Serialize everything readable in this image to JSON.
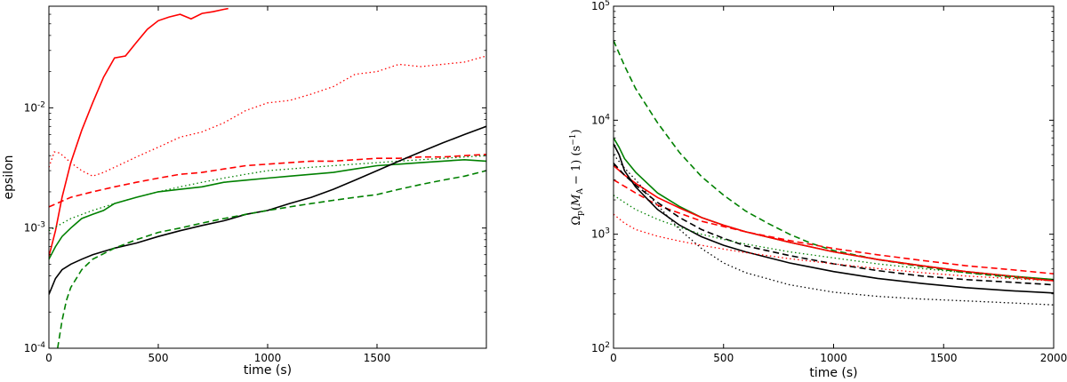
{
  "chart_data": [
    {
      "type": "line",
      "xlabel": "time (s)",
      "ylabel": "epsilon",
      "xlim": [
        0,
        2000
      ],
      "ylim": [
        0.0001,
        0.07
      ],
      "yscale": "log",
      "grid": false,
      "xticks": [
        0,
        500,
        1000,
        1500
      ],
      "xtick_labels": [
        "0",
        "500",
        "1000",
        "1500"
      ],
      "yticks": [
        0.0001,
        0.001,
        0.01
      ],
      "ytick_labels": [
        {
          "base": "10",
          "exp": "-4"
        },
        {
          "base": "10",
          "exp": "-3"
        },
        {
          "base": "10",
          "exp": "-2"
        }
      ],
      "series": [
        {
          "color": "#ff0000",
          "style": "solid",
          "x": [
            0,
            30,
            60,
            100,
            150,
            200,
            250,
            300,
            350,
            400,
            450,
            500,
            550,
            600,
            650,
            700,
            750,
            800,
            820
          ],
          "y": [
            0.00058,
            0.00095,
            0.0018,
            0.0035,
            0.0065,
            0.011,
            0.018,
            0.026,
            0.027,
            0.035,
            0.045,
            0.053,
            0.057,
            0.06,
            0.055,
            0.061,
            0.063,
            0.066,
            0.067
          ]
        },
        {
          "color": "#ff0000",
          "style": "dotted",
          "x": [
            0,
            25,
            50,
            100,
            150,
            200,
            250,
            300,
            400,
            500,
            600,
            700,
            800,
            900,
            1000,
            1100,
            1200,
            1300,
            1400,
            1500,
            1600,
            1700,
            1800,
            1900,
            2000
          ],
          "y": [
            0.0032,
            0.0043,
            0.0042,
            0.0035,
            0.003,
            0.0027,
            0.0029,
            0.0032,
            0.0039,
            0.0047,
            0.0057,
            0.0063,
            0.0075,
            0.0095,
            0.011,
            0.0115,
            0.013,
            0.015,
            0.019,
            0.02,
            0.023,
            0.022,
            0.023,
            0.024,
            0.027
          ]
        },
        {
          "color": "#ff0000",
          "style": "dashed",
          "x": [
            0,
            100,
            200,
            300,
            400,
            500,
            600,
            700,
            800,
            900,
            1000,
            1100,
            1200,
            1300,
            1400,
            1500,
            1600,
            1700,
            1800,
            1900,
            2000
          ],
          "y": [
            0.0015,
            0.0018,
            0.002,
            0.0022,
            0.0024,
            0.0026,
            0.0028,
            0.0029,
            0.0031,
            0.0033,
            0.0034,
            0.0035,
            0.0036,
            0.0036,
            0.0037,
            0.0038,
            0.0038,
            0.0039,
            0.0039,
            0.004,
            0.0041
          ]
        },
        {
          "color": "#008000",
          "style": "dotted",
          "x": [
            0,
            100,
            200,
            300,
            400,
            500,
            600,
            700,
            800,
            900,
            1000,
            1100,
            1200,
            1300,
            1400,
            1500,
            1600,
            1700,
            1800,
            1900,
            2000
          ],
          "y": [
            0.00095,
            0.0012,
            0.0014,
            0.0016,
            0.0018,
            0.002,
            0.0022,
            0.0024,
            0.0026,
            0.0028,
            0.003,
            0.0031,
            0.0032,
            0.0033,
            0.0034,
            0.0035,
            0.0036,
            0.0037,
            0.0038,
            0.0039,
            0.004
          ]
        },
        {
          "color": "#008000",
          "style": "solid",
          "x": [
            0,
            30,
            60,
            100,
            150,
            200,
            250,
            300,
            400,
            500,
            600,
            700,
            800,
            900,
            1000,
            1100,
            1200,
            1300,
            1400,
            1500,
            1600,
            1700,
            1800,
            1900,
            2000
          ],
          "y": [
            0.00055,
            0.0007,
            0.00085,
            0.001,
            0.0012,
            0.0013,
            0.0014,
            0.0016,
            0.0018,
            0.002,
            0.0021,
            0.0022,
            0.0024,
            0.0025,
            0.0026,
            0.0027,
            0.0028,
            0.0029,
            0.0031,
            0.0033,
            0.0034,
            0.0035,
            0.0036,
            0.0037,
            0.0036
          ]
        },
        {
          "color": "#000000",
          "style": "solid",
          "x": [
            0,
            30,
            60,
            100,
            150,
            200,
            300,
            400,
            500,
            600,
            700,
            800,
            900,
            1000,
            1100,
            1200,
            1300,
            1400,
            1500,
            1600,
            1700,
            1800,
            1900,
            2000
          ],
          "y": [
            0.00028,
            0.00038,
            0.00045,
            0.0005,
            0.00055,
            0.0006,
            0.00068,
            0.00075,
            0.00085,
            0.00095,
            0.00105,
            0.00115,
            0.0013,
            0.0014,
            0.0016,
            0.0018,
            0.0021,
            0.0025,
            0.003,
            0.0036,
            0.0043,
            0.0051,
            0.006,
            0.007
          ]
        },
        {
          "color": "#008000",
          "style": "dashed",
          "x": [
            40,
            60,
            80,
            100,
            150,
            200,
            300,
            400,
            500,
            600,
            700,
            800,
            900,
            1000,
            1100,
            1200,
            1300,
            1400,
            1500,
            1600,
            1700,
            1800,
            1900,
            2000
          ],
          "y": [
            0.0001,
            0.00017,
            0.00025,
            0.00032,
            0.00045,
            0.00055,
            0.00068,
            0.0008,
            0.00092,
            0.001,
            0.0011,
            0.0012,
            0.0013,
            0.0014,
            0.0015,
            0.0016,
            0.0017,
            0.0018,
            0.0019,
            0.0021,
            0.0023,
            0.0025,
            0.0027,
            0.003
          ]
        }
      ]
    },
    {
      "type": "line",
      "xlabel": "time (s)",
      "ylabel": "Ω_p(M_A−1) (s⁻¹)",
      "ylabel_parts": {
        "omega": "Ω",
        "sub_p": "p",
        "paren_open": "(",
        "m": "M",
        "sub_a": "A",
        "minus_one": " − 1)",
        "units": " (s",
        "units_exp": "−1",
        "units_close": ")"
      },
      "xlim": [
        0,
        2000
      ],
      "ylim": [
        100,
        100000
      ],
      "yscale": "log",
      "grid": false,
      "xticks": [
        0,
        500,
        1000,
        1500,
        2000
      ],
      "xtick_labels": [
        "0",
        "500",
        "1000",
        "1500",
        "2000"
      ],
      "yticks": [
        100,
        1000,
        10000,
        100000
      ],
      "ytick_labels": [
        {
          "base": "10",
          "exp": "2"
        },
        {
          "base": "10",
          "exp": "3"
        },
        {
          "base": "10",
          "exp": "4"
        },
        {
          "base": "10",
          "exp": "5"
        }
      ],
      "series": [
        {
          "color": "#008000",
          "style": "dashed",
          "x": [
            0,
            50,
            100,
            200,
            300,
            400,
            500,
            600,
            700,
            800,
            900,
            1000,
            1200,
            1400,
            1600,
            1800,
            2000
          ],
          "y": [
            50000,
            30000,
            19000,
            9500,
            5200,
            3200,
            2200,
            1600,
            1250,
            1000,
            830,
            720,
            600,
            520,
            460,
            420,
            390
          ]
        },
        {
          "color": "#008000",
          "style": "solid",
          "x": [
            0,
            25,
            50,
            100,
            200,
            300,
            400,
            500,
            600,
            800,
            1000,
            1200,
            1400,
            1600,
            1800,
            2000
          ],
          "y": [
            7000,
            5800,
            4600,
            3500,
            2300,
            1750,
            1400,
            1200,
            1050,
            850,
            700,
            600,
            530,
            470,
            430,
            400
          ]
        },
        {
          "color": "#ff0000",
          "style": "solid",
          "x": [
            0,
            50,
            100,
            200,
            300,
            400,
            500,
            600,
            800,
            1000,
            1200,
            1400,
            1600,
            1800,
            2000
          ],
          "y": [
            4000,
            3300,
            2800,
            2100,
            1700,
            1400,
            1200,
            1050,
            850,
            700,
            600,
            530,
            470,
            430,
            390
          ]
        },
        {
          "color": "#ff0000",
          "style": "dashed",
          "x": [
            0,
            100,
            200,
            400,
            600,
            800,
            1000,
            1200,
            1400,
            1600,
            1800,
            2000
          ],
          "y": [
            3000,
            2300,
            1800,
            1300,
            1050,
            880,
            750,
            660,
            590,
            530,
            490,
            450
          ]
        },
        {
          "color": "#000000",
          "style": "solid",
          "x": [
            0,
            25,
            50,
            100,
            200,
            300,
            400,
            500,
            600,
            800,
            1000,
            1200,
            1400,
            1600,
            1800,
            2000
          ],
          "y": [
            6200,
            5000,
            3600,
            2600,
            1650,
            1200,
            950,
            800,
            700,
            560,
            470,
            410,
            370,
            340,
            320,
            305
          ]
        },
        {
          "color": "#000000",
          "style": "dashed",
          "x": [
            0,
            50,
            100,
            200,
            300,
            400,
            500,
            600,
            800,
            1000,
            1200,
            1400,
            1600,
            1800,
            2000
          ],
          "y": [
            4200,
            3300,
            2700,
            1900,
            1400,
            1100,
            920,
            790,
            650,
            550,
            480,
            430,
            400,
            380,
            360
          ]
        },
        {
          "color": "#008000",
          "style": "dotted",
          "x": [
            0,
            50,
            100,
            200,
            300,
            400,
            500,
            600,
            800,
            1000,
            1200,
            1400,
            1600,
            1800,
            2000
          ],
          "y": [
            2200,
            1900,
            1650,
            1350,
            1150,
            1000,
            900,
            820,
            700,
            620,
            550,
            500,
            460,
            430,
            400
          ]
        },
        {
          "color": "#000000",
          "style": "dotted",
          "x": [
            0,
            50,
            100,
            200,
            300,
            400,
            500,
            600,
            800,
            1000,
            1200,
            1400,
            1600,
            1800,
            2000
          ],
          "y": [
            5000,
            3800,
            3000,
            1800,
            1100,
            750,
            560,
            460,
            360,
            310,
            285,
            270,
            260,
            250,
            240
          ]
        },
        {
          "color": "#ff0000",
          "style": "dotted",
          "x": [
            0,
            50,
            100,
            200,
            300,
            400,
            500,
            600,
            800,
            1000,
            1200,
            1400,
            1600,
            1800,
            2000
          ],
          "y": [
            1500,
            1250,
            1100,
            960,
            870,
            800,
            740,
            690,
            610,
            550,
            500,
            460,
            430,
            410,
            390
          ]
        }
      ]
    }
  ]
}
